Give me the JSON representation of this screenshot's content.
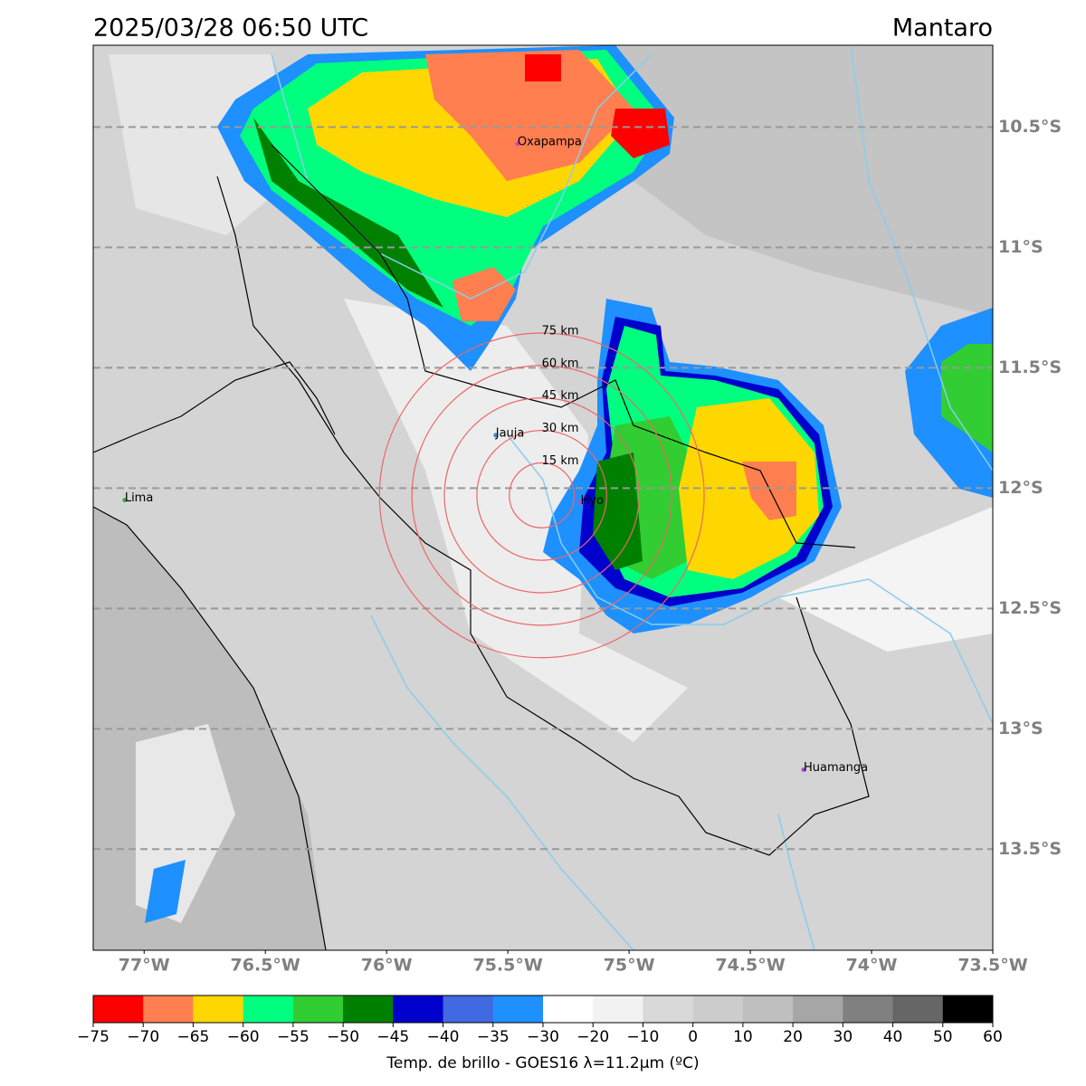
{
  "title": "2025/03/28 06:50 UTC",
  "region": "Mantaro",
  "extent": {
    "lon": [
      -77.21,
      -73.5
    ],
    "lat": [
      -10.16,
      -13.92
    ]
  },
  "lat_ticks": [
    {
      "value": -10.5,
      "label": "10.5°S"
    },
    {
      "value": -11,
      "label": "11°S"
    },
    {
      "value": -11.5,
      "label": "11.5°S"
    },
    {
      "value": -12,
      "label": "12°S"
    },
    {
      "value": -12.5,
      "label": "12.5°S"
    },
    {
      "value": -13,
      "label": "13°S"
    },
    {
      "value": -13.5,
      "label": "13.5°S"
    }
  ],
  "lon_ticks": [
    {
      "value": -77,
      "label": "77°W"
    },
    {
      "value": -76.5,
      "label": "76.5°W"
    },
    {
      "value": -76,
      "label": "76°W"
    },
    {
      "value": -75.5,
      "label": "75.5°W"
    },
    {
      "value": -75,
      "label": "75°W"
    },
    {
      "value": -74.5,
      "label": "74.5°W"
    },
    {
      "value": -74,
      "label": "74°W"
    },
    {
      "value": -73.5,
      "label": "73.5°W"
    }
  ],
  "cities": [
    {
      "name": "Oxapampa",
      "lon": -75.46,
      "lat": -10.57,
      "color": "#cc44cc"
    },
    {
      "name": "Jauja",
      "lon": -75.55,
      "lat": -11.78,
      "color": "#4488cc"
    },
    {
      "name": "Lima",
      "lon": -77.08,
      "lat": -12.05,
      "color": "#33aa55"
    },
    {
      "name": "Hyo",
      "lon": -75.2,
      "lat": -12.06,
      "color": "#cc44cc"
    },
    {
      "name": "Huamanga",
      "lon": -74.28,
      "lat": -13.17,
      "color": "#aa44dd"
    }
  ],
  "rings": {
    "center": {
      "lon": -75.36,
      "lat": -12.03
    },
    "color": "#ee6666",
    "radii": [
      {
        "value": 15,
        "label": "15 km"
      },
      {
        "value": 30,
        "label": "30 km"
      },
      {
        "value": 45,
        "label": "45 km"
      },
      {
        "value": 60,
        "label": "60 km"
      },
      {
        "value": 75,
        "label": "75 km"
      }
    ]
  },
  "colorbar": {
    "label": "Temp. de brillo - GOES16 λ=11.2μm (ºC)",
    "colors": [
      "#ff0000",
      "#ff7f50",
      "#ffd700",
      "#00ff7f",
      "#32cd32",
      "#008000",
      "#0000cd",
      "#4169e1",
      "#1e90ff",
      "#ffffff",
      "#f2f2f2",
      "#d9d9d9",
      "#cccccc",
      "#bfbfbf",
      "#a6a6a6",
      "#808080",
      "#666666",
      "#000000"
    ],
    "ticks": [
      {
        "value": -75,
        "label": "−75"
      },
      {
        "value": -70,
        "label": "−70"
      },
      {
        "value": -65,
        "label": "−65"
      },
      {
        "value": -60,
        "label": "−60"
      },
      {
        "value": -55,
        "label": "−55"
      },
      {
        "value": -50,
        "label": "−50"
      },
      {
        "value": -45,
        "label": "−45"
      },
      {
        "value": -40,
        "label": "−40"
      },
      {
        "value": -35,
        "label": "−35"
      },
      {
        "value": -30,
        "label": "−30"
      },
      {
        "value": -20,
        "label": "−20"
      },
      {
        "value": -10,
        "label": "−10"
      },
      0,
      10,
      20,
      30,
      40,
      50,
      60
    ]
  }
}
